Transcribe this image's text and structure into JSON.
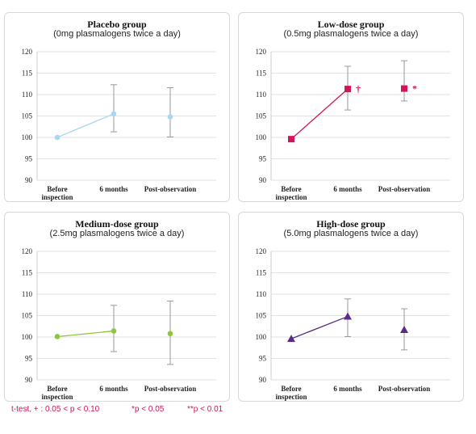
{
  "chart_data": [
    {
      "type": "line",
      "title": "Placebo group",
      "subtitle": "(0mg plasmalogens twice a day)",
      "categories": [
        "Before inspection",
        "6 months",
        "Post-observation"
      ],
      "yticks": [
        90,
        95,
        100,
        105,
        110,
        115,
        120
      ],
      "ylim": [
        90,
        120
      ],
      "color": "#a8d8ef",
      "marker": "circle",
      "series": [
        {
          "values": [
            100.0,
            105.5,
            104.8
          ],
          "errors": [
            null,
            [
              101.3,
              112.3
            ],
            [
              100.1,
              111.6
            ]
          ]
        }
      ],
      "connect": [
        0,
        1
      ],
      "annotations": [
        null,
        null,
        null
      ]
    },
    {
      "type": "line",
      "title": "Low-dose group",
      "subtitle": "(0.5mg plasmalogens twice a day)",
      "categories": [
        "Before inspection",
        "6 months",
        "Post-observation"
      ],
      "yticks": [
        90,
        95,
        100,
        105,
        110,
        115,
        120
      ],
      "ylim": [
        90,
        120
      ],
      "color": "#d4145a",
      "marker": "square",
      "series": [
        {
          "values": [
            99.6,
            111.3,
            111.4
          ],
          "errors": [
            null,
            [
              106.4,
              116.6
            ],
            [
              108.5,
              117.9
            ]
          ]
        }
      ],
      "connect": [
        0,
        1
      ],
      "annotations": [
        null,
        "†",
        "*"
      ]
    },
    {
      "type": "line",
      "title": "Medium-dose group",
      "subtitle": "(2.5mg plasmalogens twice a day)",
      "categories": [
        "Before inspection",
        "6 months",
        "Post-observation"
      ],
      "yticks": [
        90,
        95,
        100,
        105,
        110,
        115,
        120
      ],
      "ylim": [
        90,
        120
      ],
      "color": "#8cc63f",
      "marker": "circle",
      "series": [
        {
          "values": [
            100.1,
            101.4,
            100.8
          ],
          "errors": [
            null,
            [
              96.6,
              107.4
            ],
            [
              93.6,
              108.4
            ]
          ]
        }
      ],
      "connect": [
        0,
        1
      ],
      "annotations": [
        null,
        null,
        null
      ]
    },
    {
      "type": "line",
      "title": "High-dose group",
      "subtitle": "(5.0mg plasmalogens twice a day)",
      "categories": [
        "Before inspection",
        "6 months",
        "Post-observation"
      ],
      "yticks": [
        90,
        95,
        100,
        105,
        110,
        115,
        120
      ],
      "ylim": [
        90,
        120
      ],
      "color": "#5b2a86",
      "marker": "triangle",
      "series": [
        {
          "values": [
            99.6,
            104.8,
            101.7
          ],
          "errors": [
            null,
            [
              100.1,
              108.9
            ],
            [
              97.0,
              106.6
            ]
          ]
        }
      ],
      "connect": [
        0,
        1
      ],
      "annotations": [
        null,
        null,
        null
      ]
    }
  ],
  "legend": {
    "ttest": "t-test, + :  0.05 < p < 0.10",
    "p05": "*p < 0.05",
    "p01": "**p < 0.01"
  }
}
